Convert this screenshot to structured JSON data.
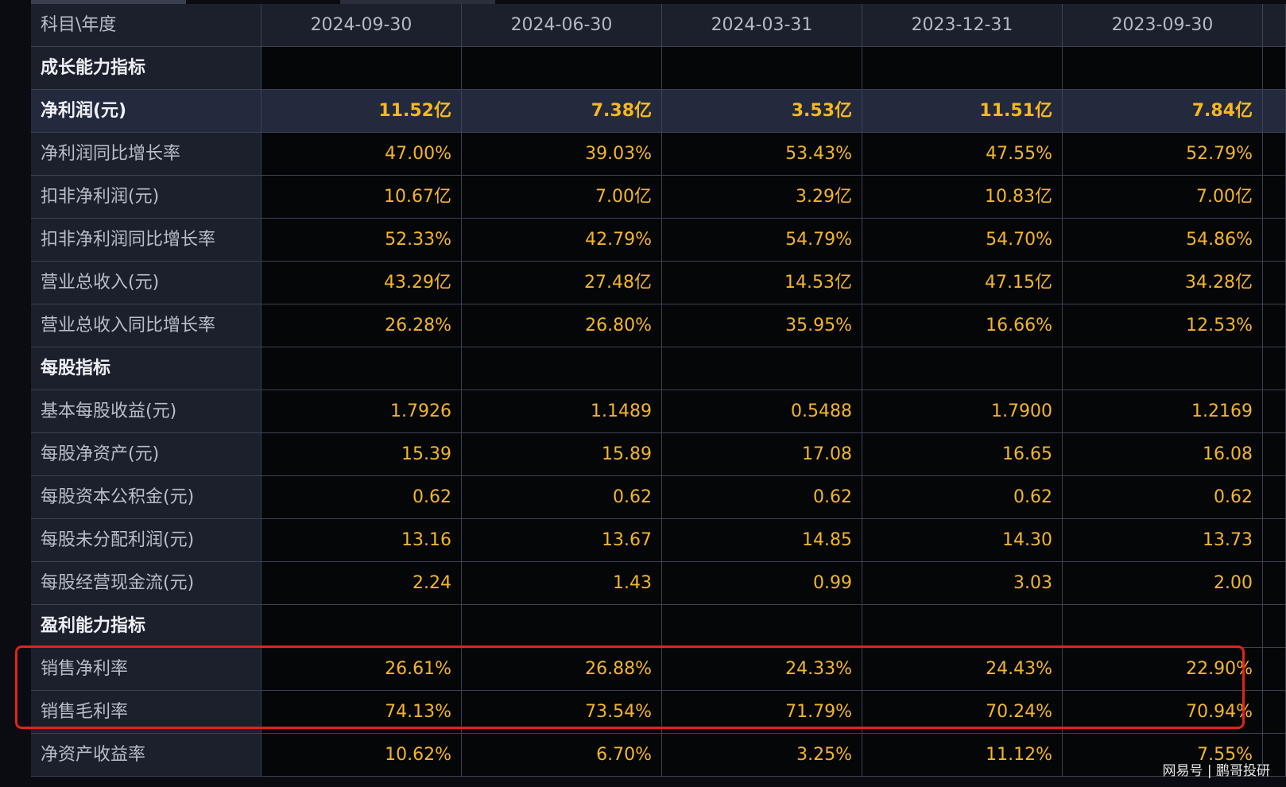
{
  "header": {
    "label": "科目\\年度",
    "columns": [
      "2024-09-30",
      "2024-06-30",
      "2024-03-31",
      "2023-12-31",
      "2023-09-30"
    ]
  },
  "rows": [
    {
      "label": "成长能力指标"
    },
    {
      "label": "净利润(元)",
      "values": [
        "11.52亿",
        "7.38亿",
        "3.53亿",
        "11.51亿",
        "7.84亿"
      ]
    },
    {
      "label": "净利润同比增长率",
      "values": [
        "47.00%",
        "39.03%",
        "53.43%",
        "47.55%",
        "52.79%"
      ]
    },
    {
      "label": "扣非净利润(元)",
      "values": [
        "10.67亿",
        "7.00亿",
        "3.29亿",
        "10.83亿",
        "7.00亿"
      ]
    },
    {
      "label": "扣非净利润同比增长率",
      "values": [
        "52.33%",
        "42.79%",
        "54.79%",
        "54.70%",
        "54.86%"
      ]
    },
    {
      "label": "营业总收入(元)",
      "values": [
        "43.29亿",
        "27.48亿",
        "14.53亿",
        "47.15亿",
        "34.28亿"
      ]
    },
    {
      "label": "营业总收入同比增长率",
      "values": [
        "26.28%",
        "26.80%",
        "35.95%",
        "16.66%",
        "12.53%"
      ]
    },
    {
      "label": "每股指标"
    },
    {
      "label": "基本每股收益(元)",
      "values": [
        "1.7926",
        "1.1489",
        "0.5488",
        "1.7900",
        "1.2169"
      ]
    },
    {
      "label": "每股净资产(元)",
      "values": [
        "15.39",
        "15.89",
        "17.08",
        "16.65",
        "16.08"
      ]
    },
    {
      "label": "每股资本公积金(元)",
      "values": [
        "0.62",
        "0.62",
        "0.62",
        "0.62",
        "0.62"
      ]
    },
    {
      "label": "每股未分配利润(元)",
      "values": [
        "13.16",
        "13.67",
        "14.85",
        "14.30",
        "13.73"
      ]
    },
    {
      "label": "每股经营现金流(元)",
      "values": [
        "2.24",
        "1.43",
        "0.99",
        "3.03",
        "2.00"
      ]
    },
    {
      "label": "盈利能力指标"
    },
    {
      "label": "销售净利率",
      "values": [
        "26.61%",
        "26.88%",
        "24.33%",
        "24.43%",
        "22.90%"
      ]
    },
    {
      "label": "销售毛利率",
      "values": [
        "74.13%",
        "73.54%",
        "71.79%",
        "70.24%",
        "70.94%"
      ]
    },
    {
      "label": "净资产收益率",
      "values": [
        "10.62%",
        "6.70%",
        "3.25%",
        "11.12%",
        "7.55%"
      ]
    }
  ],
  "watermark": "网易号 | 鹏哥投研"
}
